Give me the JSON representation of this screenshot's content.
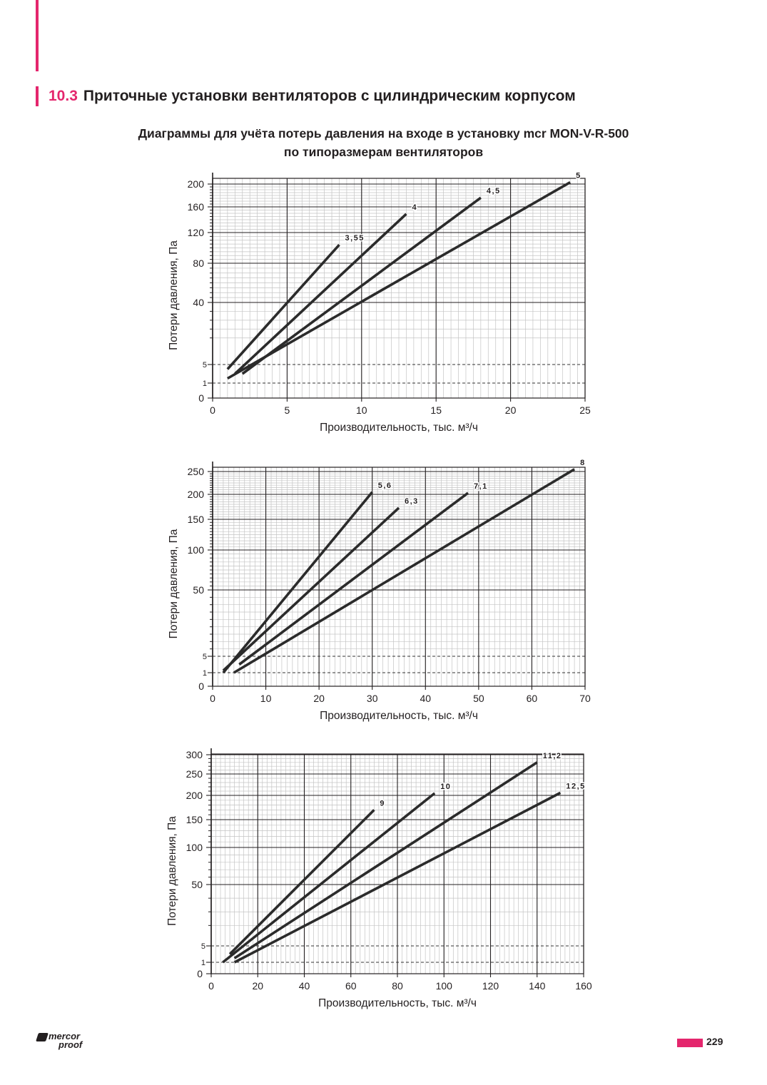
{
  "colors": {
    "accent": "#e4266d",
    "ink": "#231f20",
    "line": "#2b2b2b"
  },
  "header": {
    "section_number": "10.3",
    "section_title": "Приточные установки вентиляторов с цилиндрическим корпусом",
    "subtitle_line1": "Диаграммы для учёта потерь давления на входе в установку mcr MON-V-R-500",
    "subtitle_line2": "по типоразмерам вентиляторов"
  },
  "footer": {
    "logo_word1": "mercor",
    "logo_word2": "proof",
    "page_number": "229"
  },
  "chart_data": [
    {
      "type": "line",
      "xlabel": "Производительность, тыс. м³/ч",
      "ylabel": "Потери давления, Па",
      "xlim": [
        0,
        25
      ],
      "x_ticks": [
        "0",
        "5",
        "10",
        "15",
        "20",
        "25"
      ],
      "y_ticks": [
        {
          "value": 0,
          "label": "0",
          "small": false
        },
        {
          "value": 1,
          "label": "1",
          "small": true
        },
        {
          "value": 5,
          "label": "5",
          "small": true
        },
        {
          "value": 40,
          "label": "40",
          "small": false
        },
        {
          "value": 80,
          "label": "80",
          "small": false
        },
        {
          "value": 120,
          "label": "120",
          "small": false
        },
        {
          "value": 160,
          "label": "160",
          "small": false
        },
        {
          "value": 200,
          "label": "200",
          "small": false
        }
      ],
      "dashed_levels": [
        1,
        5
      ],
      "grid": true,
      "series": [
        {
          "name": "3,55",
          "points": [
            [
              1,
              4
            ],
            [
              8.5,
              104
            ]
          ]
        },
        {
          "name": "4",
          "points": [
            [
              1.5,
              3
            ],
            [
              13,
              149
            ]
          ]
        },
        {
          "name": "4,5",
          "points": [
            [
              2,
              3
            ],
            [
              18,
              176
            ]
          ]
        },
        {
          "name": "5",
          "points": [
            [
              1,
              2
            ],
            [
              24,
              203
            ]
          ]
        }
      ]
    },
    {
      "type": "line",
      "xlabel": "Производительность, тыс. м³/ч",
      "ylabel": "Потери давления, Па",
      "xlim": [
        0,
        70
      ],
      "x_ticks": [
        "0",
        "10",
        "20",
        "30",
        "40",
        "50",
        "60",
        "70"
      ],
      "y_ticks": [
        {
          "value": 0,
          "label": "0",
          "small": false
        },
        {
          "value": 1,
          "label": "1",
          "small": true
        },
        {
          "value": 5,
          "label": "5",
          "small": true
        },
        {
          "value": 50,
          "label": "50",
          "small": false
        },
        {
          "value": 100,
          "label": "100",
          "small": false
        },
        {
          "value": 150,
          "label": "150",
          "small": false
        },
        {
          "value": 200,
          "label": "200",
          "small": false
        },
        {
          "value": 250,
          "label": "250",
          "small": false
        }
      ],
      "dashed_levels": [
        1,
        5
      ],
      "grid": true,
      "series": [
        {
          "name": "5,6",
          "points": [
            [
              2,
              1
            ],
            [
              30,
              205
            ]
          ]
        },
        {
          "name": "6,3",
          "points": [
            [
              2,
              1.5
            ],
            [
              35,
              173
            ]
          ]
        },
        {
          "name": "7,1",
          "points": [
            [
              5,
              3
            ],
            [
              48,
              203
            ]
          ]
        },
        {
          "name": "8",
          "points": [
            [
              4,
              1
            ],
            [
              68,
              255
            ]
          ]
        }
      ]
    },
    {
      "type": "line",
      "xlabel": "Производительность, тыс. м³/ч",
      "ylabel": "Потери давления, Па",
      "xlim": [
        0,
        160
      ],
      "x_ticks": [
        "0",
        "20",
        "40",
        "60",
        "80",
        "100",
        "120",
        "140",
        "160"
      ],
      "y_ticks": [
        {
          "value": 0,
          "label": "0",
          "small": false
        },
        {
          "value": 1,
          "label": "1",
          "small": true
        },
        {
          "value": 5,
          "label": "5",
          "small": true
        },
        {
          "value": 50,
          "label": "50",
          "small": false
        },
        {
          "value": 100,
          "label": "100",
          "small": false
        },
        {
          "value": 150,
          "label": "150",
          "small": false
        },
        {
          "value": 200,
          "label": "200",
          "small": false
        },
        {
          "value": 250,
          "label": "250",
          "small": false
        },
        {
          "value": 300,
          "label": "300",
          "small": false
        }
      ],
      "dashed_levels": [
        1,
        5
      ],
      "grid": true,
      "series": [
        {
          "name": "9",
          "points": [
            [
              8,
              3
            ],
            [
              70,
              170
            ]
          ]
        },
        {
          "name": "10",
          "points": [
            [
              5,
              1
            ],
            [
              96,
              205
            ]
          ]
        },
        {
          "name": "11,2",
          "points": [
            [
              10,
              2
            ],
            [
              140,
              280
            ]
          ]
        },
        {
          "name": "12,5",
          "points": [
            [
              10,
              1
            ],
            [
              150,
              206
            ]
          ]
        }
      ]
    }
  ]
}
